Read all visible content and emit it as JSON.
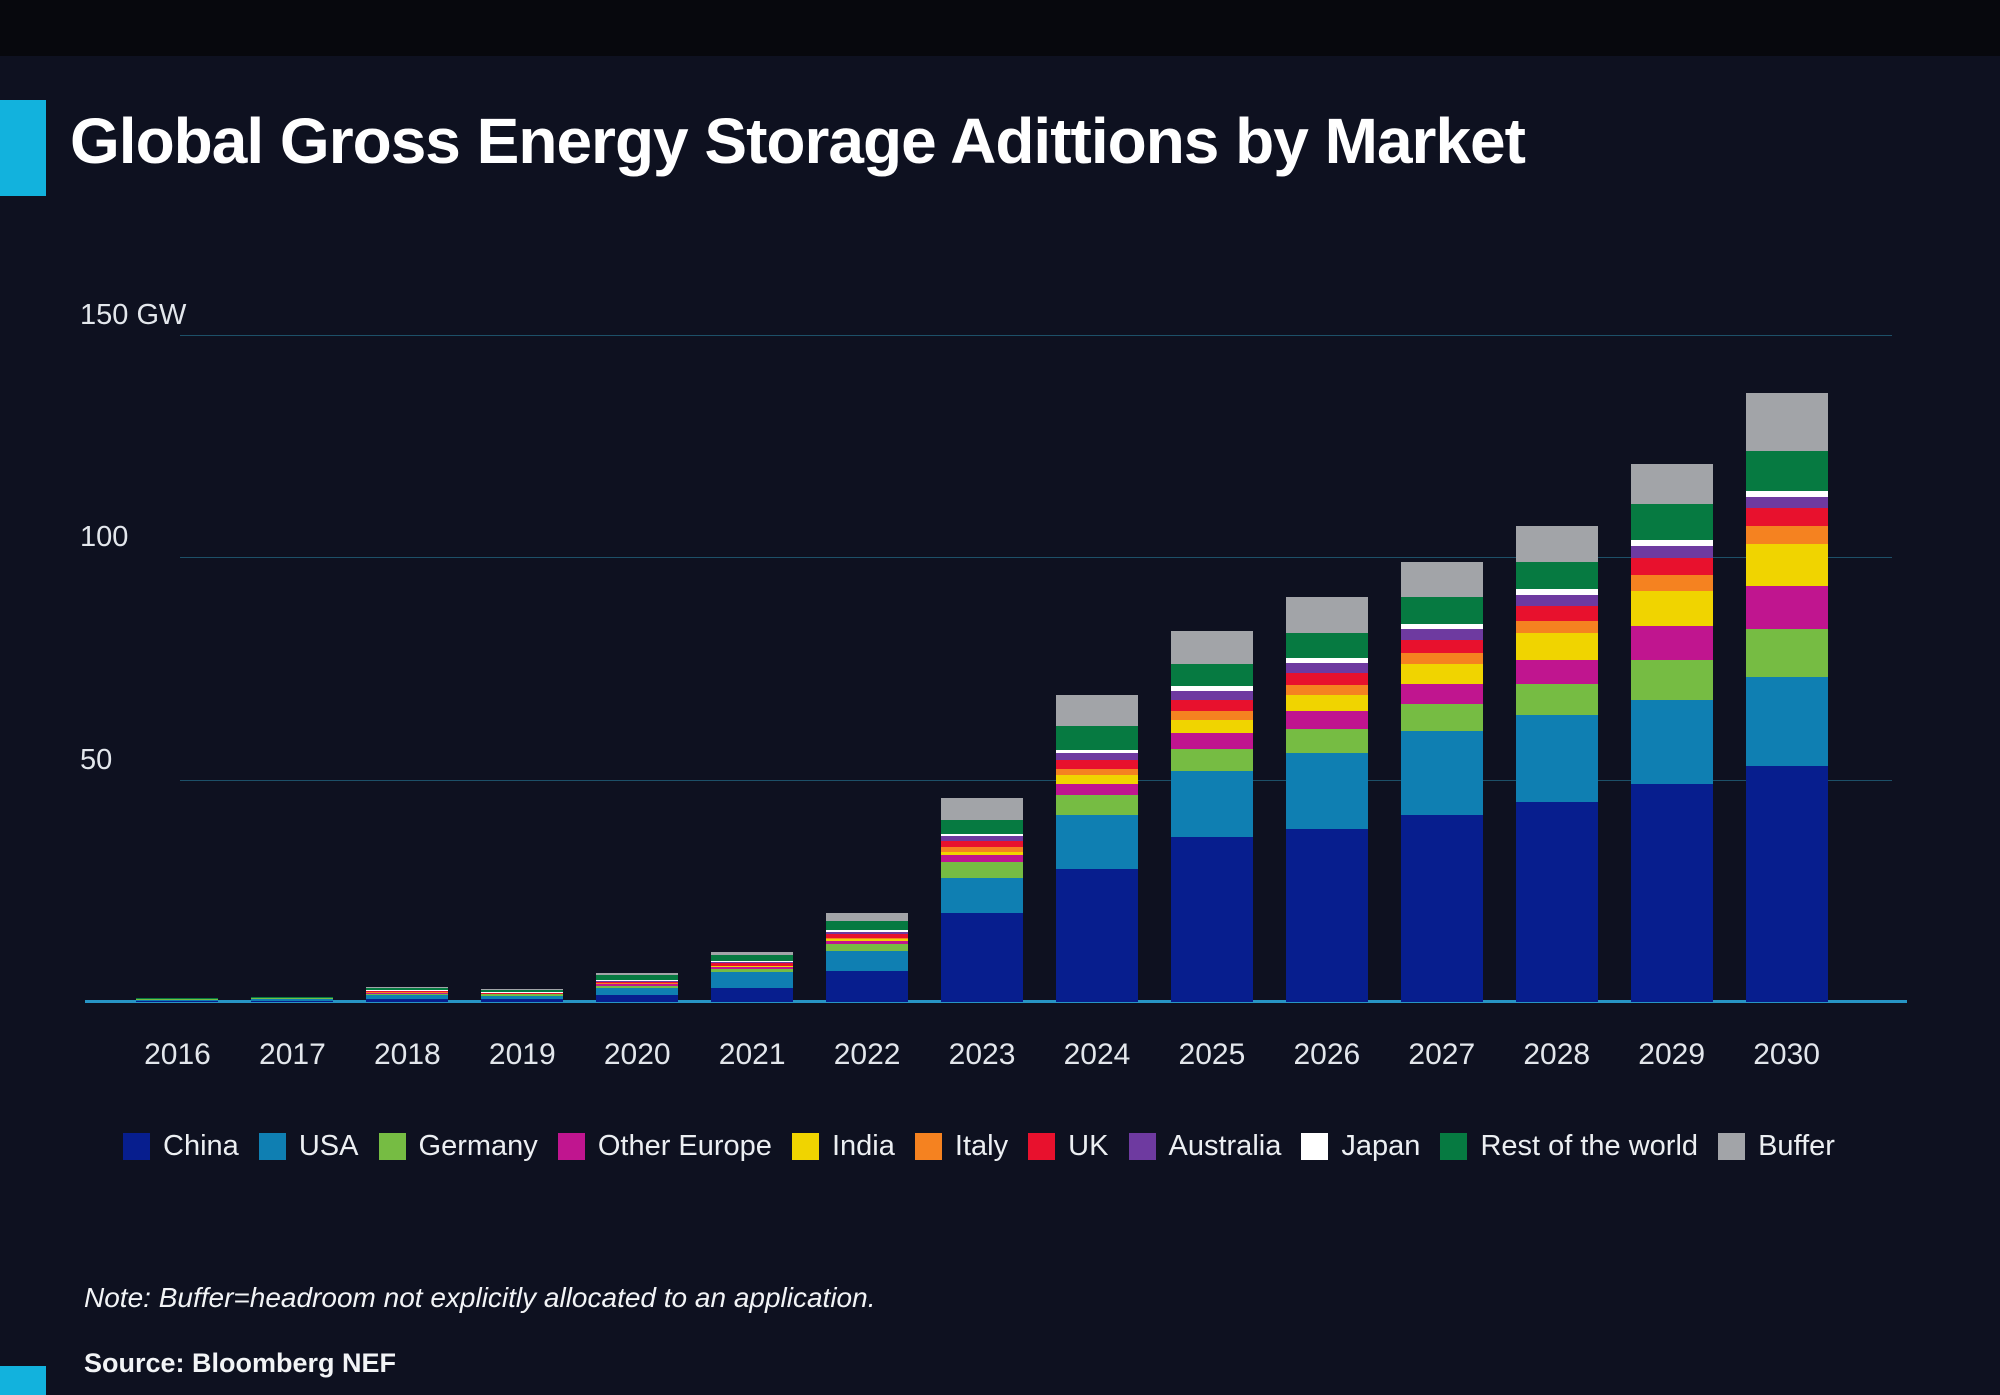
{
  "header": {
    "title": "Global Gross Energy Storage Adittions by Market"
  },
  "footer": {
    "note": "Note: Buffer=headroom not explicitly allocated to an application.",
    "source": "Source: Bloomberg NEF"
  },
  "colors": {
    "background": "#0e1120",
    "top_band": "#07080d",
    "accent": "#12b2dd",
    "baseline": "#2795c5",
    "gridline": "#1d5068",
    "text": "#e3e7ec"
  },
  "chart_data": {
    "type": "bar",
    "stacked": true,
    "unit": "GW",
    "title": "Global Gross Energy Storage Adittions by Market",
    "grid": true,
    "legend_position": "bottom",
    "ylim": [
      0,
      150
    ],
    "y_ticks": [
      {
        "value": 150,
        "label": "150 GW"
      },
      {
        "value": 100,
        "label": "100"
      },
      {
        "value": 50,
        "label": "50"
      }
    ],
    "categories": [
      "2016",
      "2017",
      "2018",
      "2019",
      "2020",
      "2021",
      "2022",
      "2023",
      "2024",
      "2025",
      "2026",
      "2027",
      "2028",
      "2029",
      "2030"
    ],
    "series": [
      {
        "name": "China",
        "color": "#071e8e",
        "values": [
          0.2,
          0.3,
          0.6,
          0.6,
          1.6,
          3.2,
          7.0,
          20.0,
          30.0,
          37.0,
          39.0,
          42.0,
          45.0,
          49.0,
          53.0
        ]
      },
      {
        "name": "USA",
        "color": "#0f7fb2",
        "values": [
          0.3,
          0.4,
          1.0,
          0.8,
          1.5,
          3.5,
          4.5,
          8.0,
          12.0,
          15.0,
          17.0,
          19.0,
          19.5,
          19.0,
          20.0
        ]
      },
      {
        "name": "Germany",
        "color": "#76bc43",
        "values": [
          0.1,
          0.1,
          0.3,
          0.3,
          0.6,
          0.7,
          1.5,
          3.5,
          4.5,
          5.0,
          5.5,
          6.0,
          7.0,
          9.0,
          11.0
        ]
      },
      {
        "name": "Other Europe",
        "color": "#c0158f",
        "values": [
          0.0,
          0.0,
          0.1,
          0.1,
          0.3,
          0.4,
          0.8,
          1.5,
          2.5,
          3.5,
          4.0,
          4.5,
          5.5,
          7.5,
          9.5
        ]
      },
      {
        "name": "India",
        "color": "#f0d400",
        "values": [
          0.0,
          0.0,
          0.1,
          0.1,
          0.1,
          0.2,
          0.3,
          0.8,
          2.0,
          3.0,
          3.5,
          4.5,
          6.0,
          8.0,
          9.5
        ]
      },
      {
        "name": "Italy",
        "color": "#f58220",
        "values": [
          0.0,
          0.0,
          0.1,
          0.0,
          0.1,
          0.2,
          0.4,
          1.0,
          1.5,
          2.0,
          2.2,
          2.5,
          2.8,
          3.5,
          4.0
        ]
      },
      {
        "name": "UK",
        "color": "#e8112d",
        "values": [
          0.0,
          0.1,
          0.2,
          0.1,
          0.3,
          0.5,
          0.8,
          1.5,
          2.0,
          2.5,
          2.8,
          3.0,
          3.2,
          3.8,
          4.0
        ]
      },
      {
        "name": "Australia",
        "color": "#6e3aa0",
        "values": [
          0.0,
          0.0,
          0.1,
          0.1,
          0.3,
          0.4,
          0.5,
          1.0,
          1.5,
          2.0,
          2.2,
          2.3,
          2.5,
          2.7,
          2.5
        ]
      },
      {
        "name": "Japan",
        "color": "#ffffff",
        "values": [
          0.1,
          0.1,
          0.2,
          0.1,
          0.2,
          0.2,
          0.3,
          0.5,
          0.8,
          1.0,
          1.2,
          1.2,
          1.5,
          1.5,
          1.5
        ]
      },
      {
        "name": "Rest of the world",
        "color": "#067a41",
        "values": [
          0.2,
          0.1,
          0.5,
          0.5,
          1.0,
          1.3,
          2.2,
          3.2,
          5.2,
          5.0,
          5.6,
          6.0,
          6.0,
          8.0,
          9.0
        ]
      },
      {
        "name": "Buffer",
        "color": "#a2a4a8",
        "values": [
          0.0,
          0.0,
          0.3,
          0.3,
          0.6,
          0.6,
          1.7,
          5.0,
          7.0,
          7.5,
          8.0,
          8.0,
          8.0,
          9.0,
          13.0
        ]
      }
    ]
  }
}
